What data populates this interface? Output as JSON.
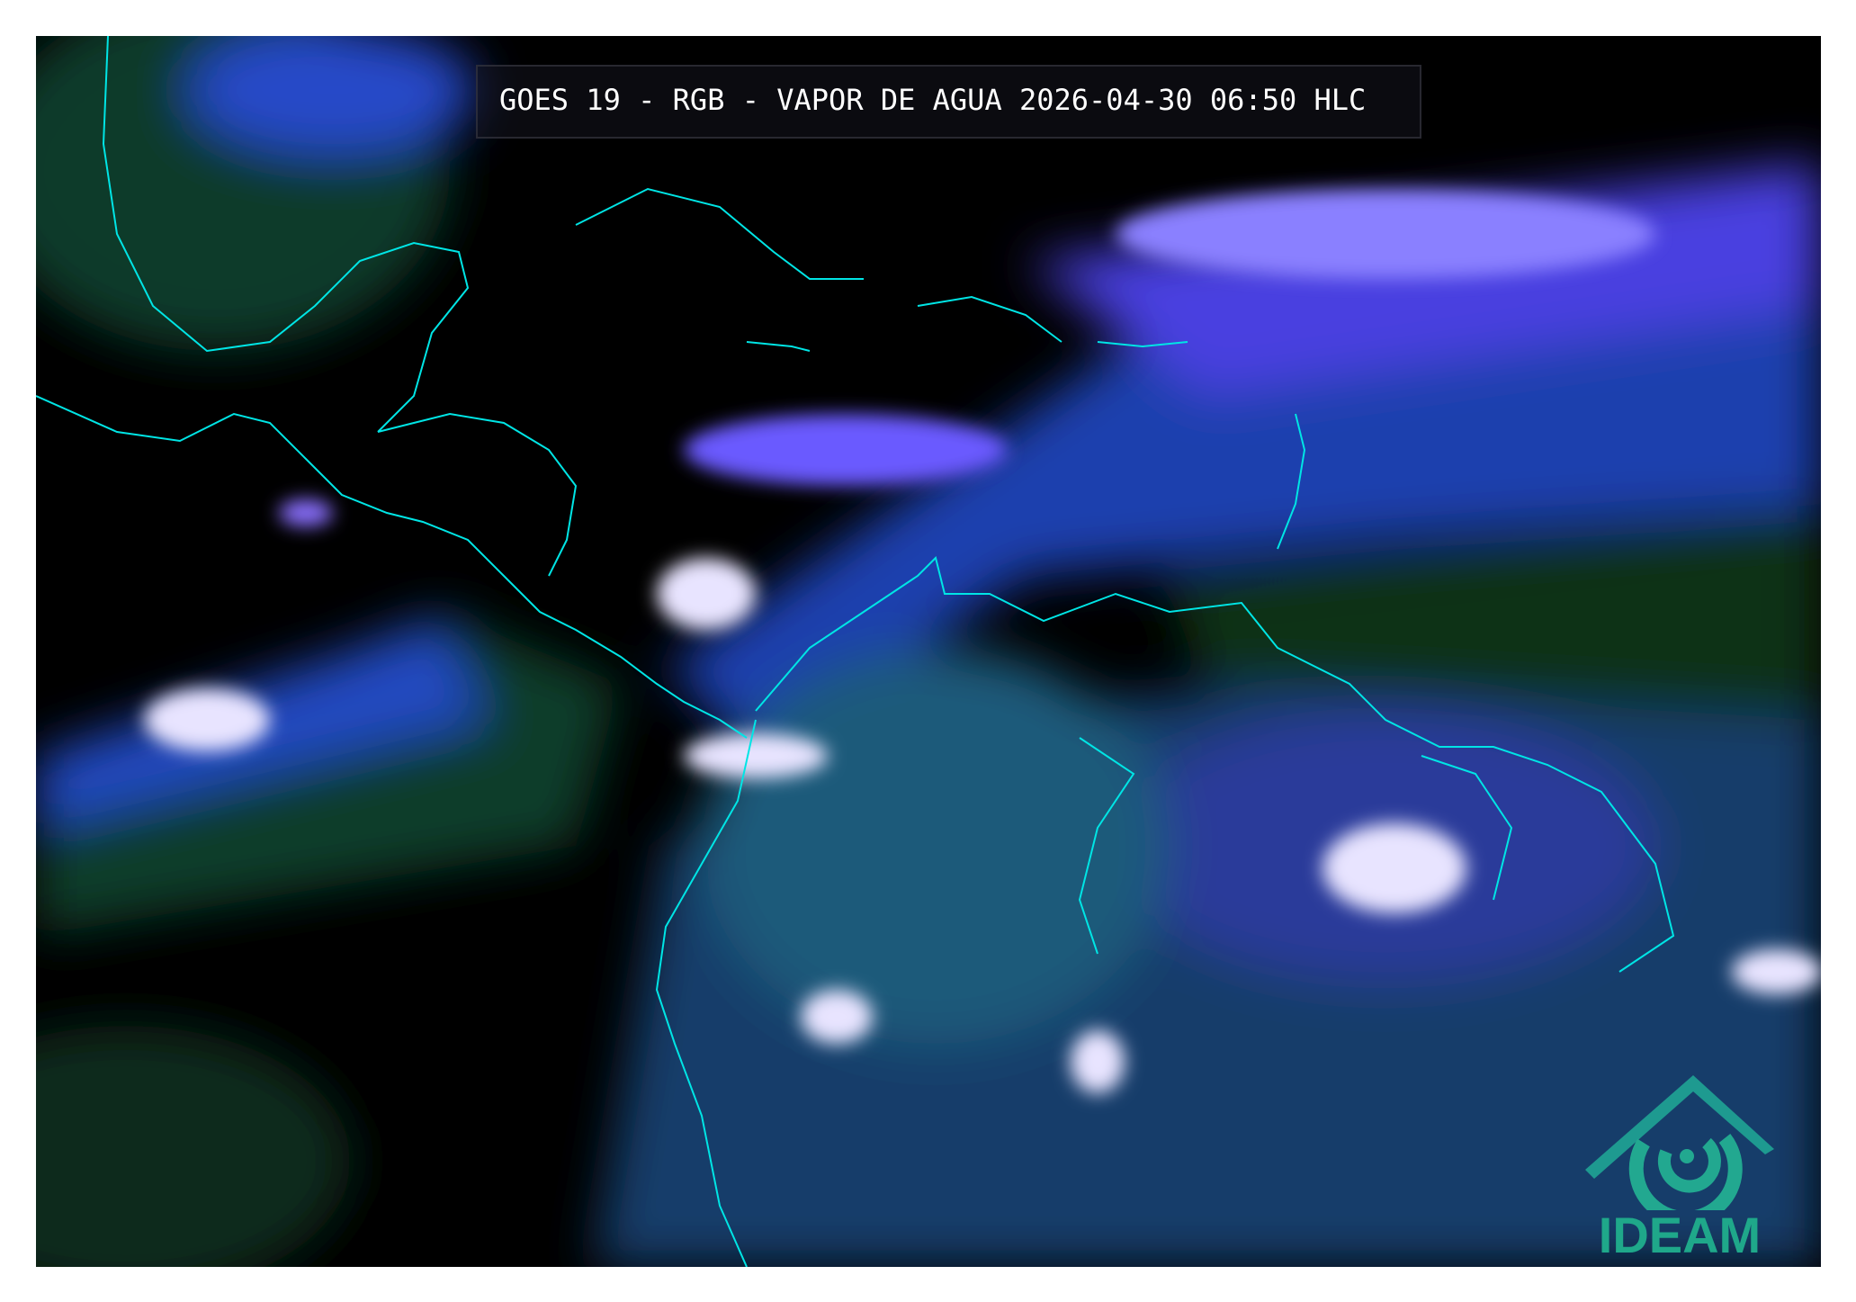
{
  "title": "GOES 19 - RGB - VAPOR DE AGUA 2026-04-30 06:50 HLC",
  "logo": {
    "text": "IDEAM",
    "color": "#1fa88a"
  },
  "map": {
    "region": "Caribbean, Central America and northern South America",
    "coastline_color": "#00e5e5",
    "palette": {
      "background": "#000000",
      "moist_green": "#0b3d14",
      "mid_blue": "#2a4bd8",
      "cloud_violet": "#7a4bff",
      "cloud_top": "#f4f0ff"
    }
  }
}
